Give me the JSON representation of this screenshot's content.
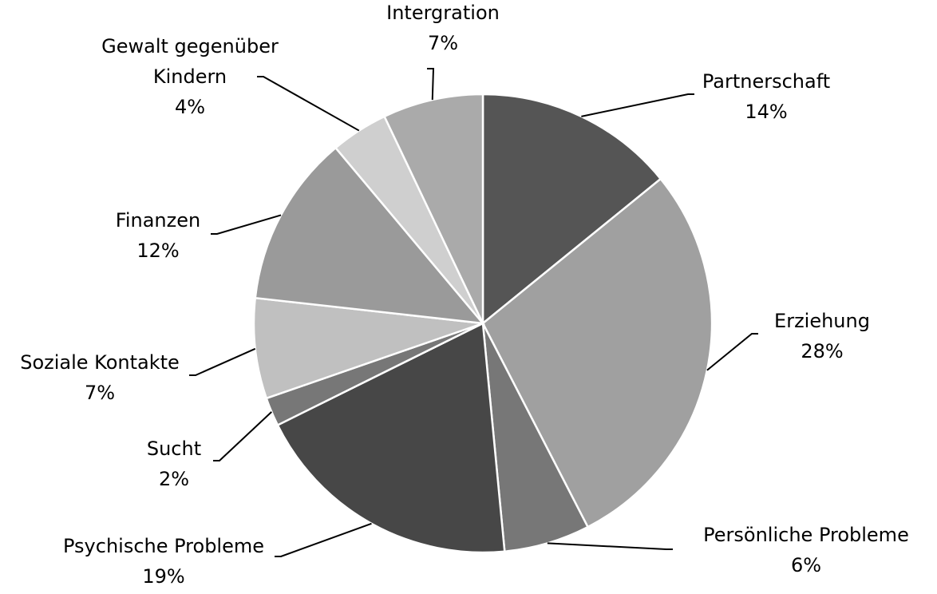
{
  "chart_data": {
    "type": "pie",
    "categories": [
      "Partnerschaft",
      "Erziehung",
      "Persönliche Probleme",
      "Psychische Probleme",
      "Sucht",
      "Soziale Kontakte",
      "Finanzen",
      "Gewalt gegenüber Kindern",
      "Intergration"
    ],
    "values": [
      14,
      28,
      6,
      19,
      2,
      7,
      12,
      4,
      7
    ],
    "value_labels": [
      "14%",
      "28%",
      "6%",
      "19%",
      "2%",
      "7%",
      "12%",
      "4%",
      "7%"
    ],
    "colors": [
      "#555555",
      "#a0a0a0",
      "#777777",
      "#474747",
      "#777777",
      "#c0c0c0",
      "#9a9a9a",
      "#cfcfcf",
      "#aaaaaa"
    ]
  }
}
